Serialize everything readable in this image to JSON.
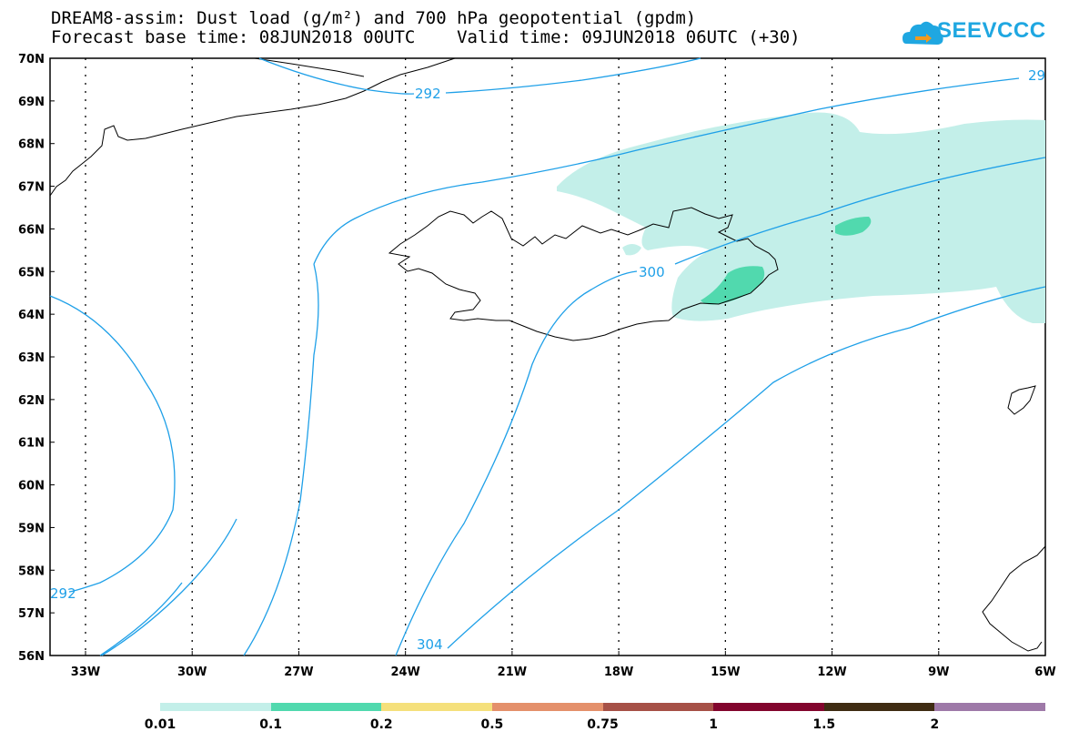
{
  "header": {
    "line1": "DREAM8-assim: Dust load (g/m²) and 700 hPa geopotential (gpdm)",
    "line2": "Forecast base time: 08JUN2018 00UTC    Valid time: 09JUN2018 06UTC (+30)"
  },
  "logo": {
    "text": "SEEVCCC",
    "icon": "cloud-logo-icon"
  },
  "axes": {
    "lat_labels": [
      "70N",
      "69N",
      "68N",
      "67N",
      "66N",
      "65N",
      "64N",
      "63N",
      "62N",
      "61N",
      "60N",
      "59N",
      "58N",
      "57N",
      "56N"
    ],
    "lon_labels": [
      "33W",
      "30W",
      "27W",
      "24W",
      "21W",
      "18W",
      "15W",
      "12W",
      "9W",
      "6W"
    ]
  },
  "contours": {
    "labels": [
      "292",
      "300",
      "304",
      "292",
      "29"
    ],
    "color": "#1fa0e8"
  },
  "legend": {
    "colors": [
      "#c3efe9",
      "#51d9ae",
      "#f5e07b",
      "#e4906b",
      "#a65147",
      "#82052d",
      "#3f2c13",
      "#9e79a8"
    ],
    "labels": [
      "0.01",
      "0.1",
      "0.2",
      "0.5",
      "0.75",
      "1",
      "1.5",
      "2"
    ]
  }
}
